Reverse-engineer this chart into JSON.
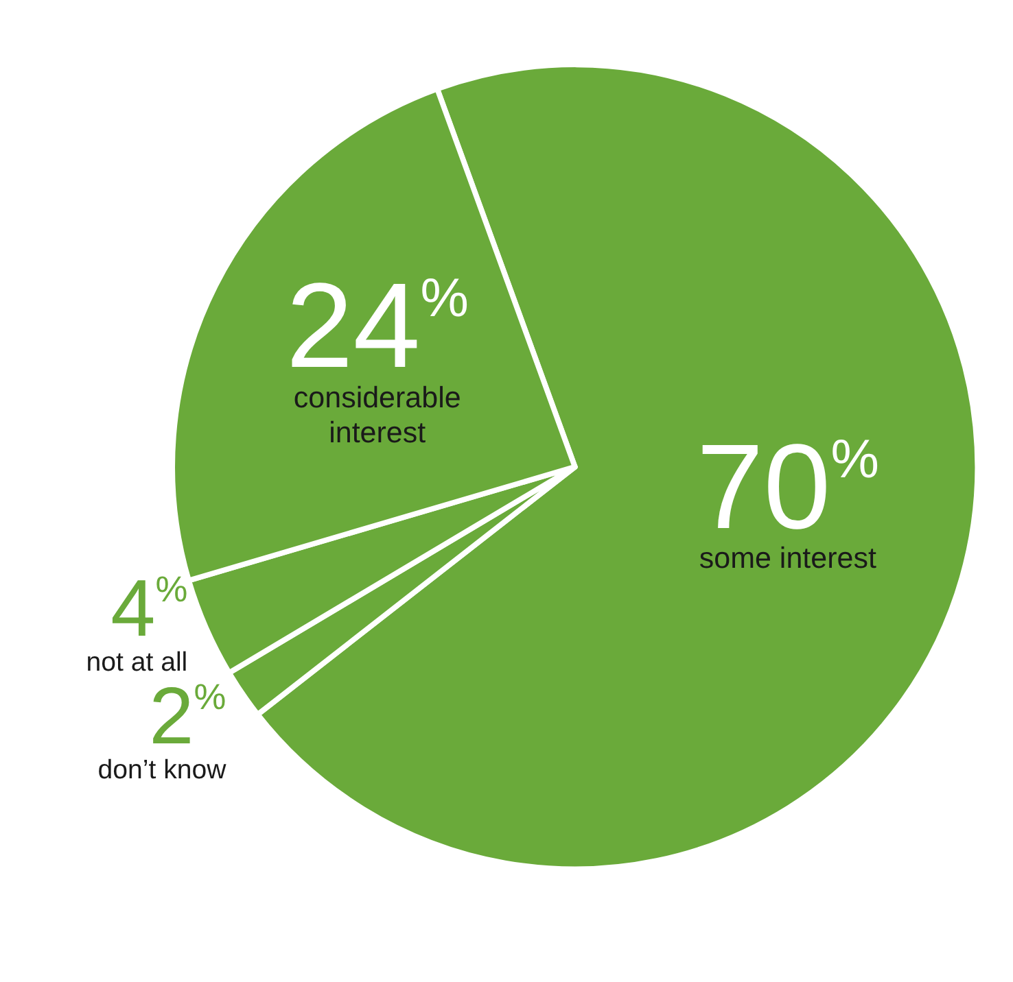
{
  "chart_data": {
    "type": "pie",
    "categories": [
      "some interest",
      "don’t know",
      "not at all",
      "considerable interest"
    ],
    "values": [
      70,
      2,
      4,
      24
    ],
    "colors": [
      "#6aaa3a",
      "#6aaa3a",
      "#6aaa3a",
      "#6aaa3a"
    ],
    "value_labels": [
      "70$^{%}$",
      "2$^{%}$",
      "4$^{%}$",
      "24$^{%}$"
    ],
    "legend": false
  }
}
